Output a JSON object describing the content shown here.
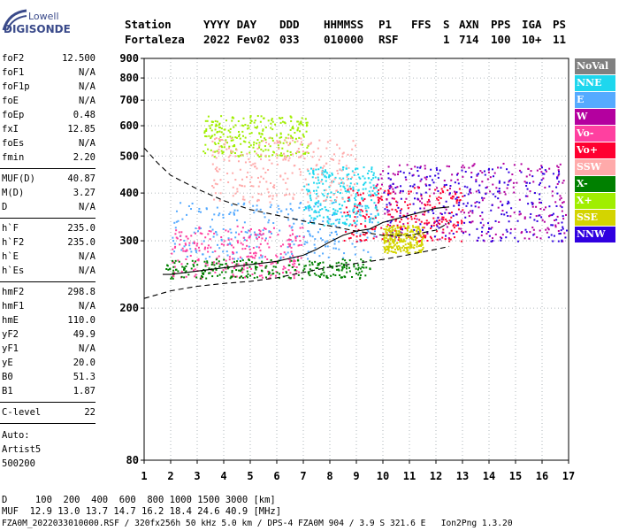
{
  "logo": {
    "line1": "Lowell",
    "line2": "DIGISONDE"
  },
  "header": {
    "line1": [
      "Station",
      "YYYY DAY",
      "DDD",
      "HHMMSS",
      "P1",
      "FFS",
      "S",
      "AXN",
      "PPS",
      "IGA",
      "PS"
    ],
    "line2": [
      "Fortaleza",
      "2022 Fev02",
      "033",
      "010000",
      "RSF",
      "1",
      "714",
      "100",
      "10+",
      "11"
    ]
  },
  "params": [
    {
      "k": "foF2",
      "v": "12.500"
    },
    {
      "k": "foF1",
      "v": "N/A"
    },
    {
      "k": "foF1p",
      "v": "N/A"
    },
    {
      "k": "foE",
      "v": "N/A"
    },
    {
      "k": "foEp",
      "v": "0.48"
    },
    {
      "k": "fxI",
      "v": "12.85"
    },
    {
      "k": "foEs",
      "v": "N/A"
    },
    {
      "k": "fmin",
      "v": "2.20"
    },
    {
      "k": "MUF(D)",
      "v": "40.87"
    },
    {
      "k": "M(D)",
      "v": "3.27"
    },
    {
      "k": "D",
      "v": "N/A"
    },
    {
      "k": "h`F",
      "v": "235.0"
    },
    {
      "k": "h`F2",
      "v": "235.0"
    },
    {
      "k": "h`E",
      "v": "N/A"
    },
    {
      "k": "h`Es",
      "v": "N/A"
    },
    {
      "k": "hmF2",
      "v": "298.8"
    },
    {
      "k": "hmF1",
      "v": "N/A"
    },
    {
      "k": "hmE",
      "v": "110.0"
    },
    {
      "k": "yF2",
      "v": "49.9"
    },
    {
      "k": "yF1",
      "v": "N/A"
    },
    {
      "k": "yE",
      "v": "20.0"
    },
    {
      "k": "B0",
      "v": "51.3"
    },
    {
      "k": "B1",
      "v": "1.87"
    },
    {
      "k": "C-level",
      "v": "22"
    }
  ],
  "auto": {
    "l1": "Auto:",
    "l2": "Artist5",
    "l3": "500200"
  },
  "legend": [
    {
      "label": "NoVal",
      "color": "#808080"
    },
    {
      "label": "NNE",
      "color": "#1ed7ee"
    },
    {
      "label": "E",
      "color": "#55aaff"
    },
    {
      "label": "W",
      "color": "#b4009f"
    },
    {
      "label": "Vo-",
      "color": "#ff40a0"
    },
    {
      "label": "Vo+",
      "color": "#ff0030"
    },
    {
      "label": "SSW",
      "color": "#ffaaaa"
    },
    {
      "label": "X-",
      "color": "#008000"
    },
    {
      "label": "X+",
      "color": "#a0ee00"
    },
    {
      "label": "SSE",
      "color": "#d4d400"
    },
    {
      "label": "NNW",
      "color": "#3000e0"
    }
  ],
  "footer": {
    "d_line": "D     100  200  400  600  800 1000 1500 3000 [km]",
    "muf_line": "MUF  12.9 13.0 13.7 14.7 16.2 18.4 24.6 40.9 [MHz]",
    "file_line": "FZA0M_2022033010000.RSF / 320fx256h 50 kHz 5.0 km / DPS-4 FZA0M 904 / 3.9 S 321.6 E   Ion2Png 1.3.20"
  },
  "chart_data": {
    "type": "scatter",
    "title": "",
    "xlabel": "",
    "ylabel": "",
    "xlim": [
      1,
      17
    ],
    "ylim": [
      80,
      900
    ],
    "x_ticks": [
      "1",
      "2",
      "3",
      "4",
      "5",
      "6",
      "7",
      "8",
      "9",
      "10",
      "11",
      "12",
      "13",
      "14",
      "15",
      "16",
      "17"
    ],
    "y_ticks": [
      "80",
      "200",
      "300",
      "400",
      "500",
      "600",
      "700",
      "800",
      "900"
    ],
    "y_tick_values": [
      80,
      200,
      300,
      400,
      500,
      600,
      700,
      800,
      900
    ],
    "grid": true,
    "scale_y": "log",
    "legend_position": "right",
    "trace_lines": [
      {
        "name": "",
        "style": "dashed",
        "x": [
          1,
          1.5,
          2,
          3,
          4,
          5,
          6,
          7,
          8,
          9,
          10,
          11,
          12,
          12.5
        ],
        "y": [
          525,
          480,
          445,
          410,
          382,
          362,
          350,
          338,
          328,
          318,
          310,
          310,
          320,
          335
        ]
      },
      {
        "name": "",
        "style": "solid",
        "x": [
          1.7,
          2,
          3,
          4,
          5,
          6,
          7,
          7.5,
          8,
          8.5,
          9,
          9.5,
          10,
          11,
          12,
          12.5
        ],
        "y": [
          245,
          245,
          250,
          255,
          260,
          265,
          275,
          285,
          298,
          310,
          318,
          322,
          335,
          350,
          365,
          368
        ]
      },
      {
        "name": "",
        "style": "dashed",
        "x": [
          1,
          2,
          3,
          4,
          5,
          6,
          7,
          8,
          9,
          10,
          11,
          12,
          12.5
        ],
        "y": [
          212,
          222,
          228,
          232,
          235,
          240,
          248,
          256,
          262,
          268,
          276,
          285,
          290
        ]
      }
    ],
    "point_clusters": [
      {
        "band": "E",
        "x": [
          2.0,
          9.7
        ],
        "y": [
          270,
          380
        ]
      },
      {
        "band": "Vo-",
        "x": [
          2.0,
          7.0
        ],
        "y": [
          240,
          330
        ]
      },
      {
        "band": "Vo+",
        "x": [
          8.5,
          13.0
        ],
        "y": [
          300,
          420
        ]
      },
      {
        "band": "X+",
        "x": [
          3.2,
          7.2
        ],
        "y": [
          500,
          640
        ]
      },
      {
        "band": "W",
        "x": [
          9.7,
          16.9
        ],
        "y": [
          300,
          480
        ]
      },
      {
        "band": "NNW",
        "x": [
          10.0,
          16.9
        ],
        "y": [
          300,
          470
        ]
      },
      {
        "band": "NNE",
        "x": [
          7.0,
          9.8
        ],
        "y": [
          330,
          470
        ]
      },
      {
        "band": "SSE",
        "x": [
          10.0,
          11.5
        ],
        "y": [
          280,
          330
        ]
      },
      {
        "band": "X-",
        "x": [
          1.8,
          9.5
        ],
        "y": [
          240,
          270
        ]
      },
      {
        "band": "SSW",
        "x": [
          3.5,
          9.0
        ],
        "y": [
          380,
          560
        ]
      }
    ]
  }
}
